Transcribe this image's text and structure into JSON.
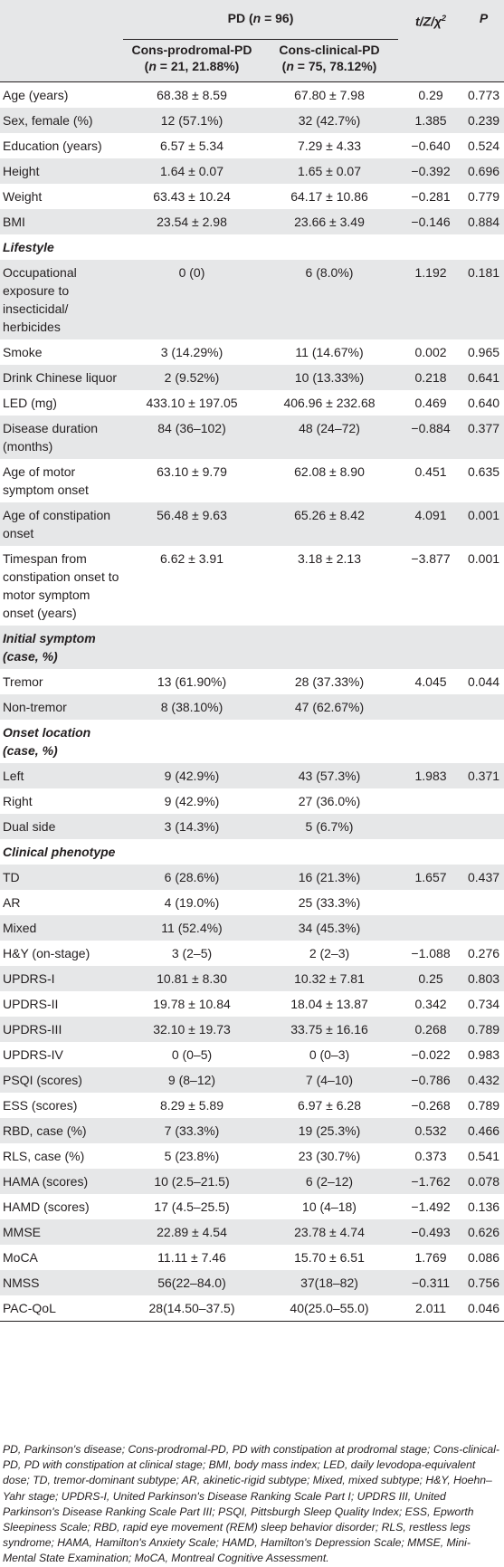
{
  "header": {
    "pd_group": "PD (n = 96)",
    "stat_col": "t/Z/χ²",
    "p_col": "P",
    "group1": "Cons-prodromal-PD",
    "group1_n": "(n = 21, 21.88%)",
    "group2": "Cons-clinical-PD",
    "group2_n": "(n = 75, 78.12%)"
  },
  "rows": [
    {
      "label": "Age (years)",
      "g1": "68.38 ± 8.59",
      "g2": "67.80 ± 7.98",
      "stat": "0.29",
      "p": "0.773"
    },
    {
      "label": "Sex, female (%)",
      "g1": "12 (57.1%)",
      "g2": "32 (42.7%)",
      "stat": "1.385",
      "p": "0.239"
    },
    {
      "label": "Education (years)",
      "g1": "6.57 ± 5.34",
      "g2": "7.29 ± 4.33",
      "stat": "−0.640",
      "p": "0.524"
    },
    {
      "label": "Height",
      "g1": "1.64 ± 0.07",
      "g2": "1.65 ± 0.07",
      "stat": "−0.392",
      "p": "0.696"
    },
    {
      "label": "Weight",
      "g1": "63.43 ± 10.24",
      "g2": "64.17 ± 10.86",
      "stat": "−0.281",
      "p": "0.779"
    },
    {
      "label": "BMI",
      "g1": "23.54 ± 2.98",
      "g2": "23.66 ± 3.49",
      "stat": "−0.146",
      "p": "0.884"
    },
    {
      "label": "Lifestyle",
      "section": true
    },
    {
      "label": "Occupational exposure to insecticidal/ herbicides",
      "g1": "0 (0)",
      "g2": "6 (8.0%)",
      "stat": "1.192",
      "p": "0.181"
    },
    {
      "label": "Smoke",
      "g1": "3 (14.29%)",
      "g2": "11 (14.67%)",
      "stat": "0.002",
      "p": "0.965"
    },
    {
      "label": "Drink Chinese liquor",
      "g1": "2 (9.52%)",
      "g2": "10 (13.33%)",
      "stat": "0.218",
      "p": "0.641"
    },
    {
      "label": "LED (mg)",
      "g1": "433.10 ± 197.05",
      "g2": "406.96 ± 232.68",
      "stat": "0.469",
      "p": "0.640"
    },
    {
      "label": "Disease duration (months)",
      "g1": "84 (36–102)",
      "g2": "48 (24–72)",
      "stat": "−0.884",
      "p": "0.377"
    },
    {
      "label": "Age of motor symptom onset",
      "g1": "63.10 ± 9.79",
      "g2": "62.08 ± 8.90",
      "stat": "0.451",
      "p": "0.635"
    },
    {
      "label": "Age of constipation onset",
      "g1": "56.48 ± 9.63",
      "g2": "65.26 ± 8.42",
      "stat": "4.091",
      "p": "0.001"
    },
    {
      "label": "Timespan from constipation onset to motor symptom onset (years)",
      "g1": "6.62 ± 3.91",
      "g2": "3.18 ± 2.13",
      "stat": "−3.877",
      "p": "0.001"
    },
    {
      "label": "Initial symptom (case, %)",
      "section": true
    },
    {
      "label": "Tremor",
      "g1": "13 (61.90%)",
      "g2": "28 (37.33%)",
      "stat": "4.045",
      "p": "0.044"
    },
    {
      "label": "Non-tremor",
      "g1": "8 (38.10%)",
      "g2": "47 (62.67%)",
      "stat": "",
      "p": ""
    },
    {
      "label": "Onset location (case, %)",
      "section": true
    },
    {
      "label": "Left",
      "g1": "9 (42.9%)",
      "g2": "43 (57.3%)",
      "stat": "1.983",
      "p": "0.371"
    },
    {
      "label": "Right",
      "g1": "9 (42.9%)",
      "g2": "27 (36.0%)",
      "stat": "",
      "p": ""
    },
    {
      "label": "Dual side",
      "g1": "3 (14.3%)",
      "g2": "5 (6.7%)",
      "stat": "",
      "p": ""
    },
    {
      "label": "Clinical phenotype",
      "section": true
    },
    {
      "label": "TD",
      "g1": "6 (28.6%)",
      "g2": "16 (21.3%)",
      "stat": "1.657",
      "p": "0.437"
    },
    {
      "label": "AR",
      "g1": "4 (19.0%)",
      "g2": "25 (33.3%)",
      "stat": "",
      "p": ""
    },
    {
      "label": "Mixed",
      "g1": "11 (52.4%)",
      "g2": "34 (45.3%)",
      "stat": "",
      "p": ""
    },
    {
      "label": "H&Y (on-stage)",
      "g1": "3 (2–5)",
      "g2": "2 (2–3)",
      "stat": "−1.088",
      "p": "0.276"
    },
    {
      "label": "UPDRS-I",
      "g1": "10.81 ± 8.30",
      "g2": "10.32 ± 7.81",
      "stat": "0.25",
      "p": "0.803"
    },
    {
      "label": "UPDRS-II",
      "g1": "19.78 ± 10.84",
      "g2": "18.04 ± 13.87",
      "stat": "0.342",
      "p": "0.734"
    },
    {
      "label": "UPDRS-III",
      "g1": "32.10 ± 19.73",
      "g2": "33.75 ± 16.16",
      "stat": "0.268",
      "p": "0.789"
    },
    {
      "label": "UPDRS-IV",
      "g1": "0 (0–5)",
      "g2": "0 (0–3)",
      "stat": "−0.022",
      "p": "0.983"
    },
    {
      "label": "PSQI (scores)",
      "g1": "9 (8–12)",
      "g2": "7 (4–10)",
      "stat": "−0.786",
      "p": "0.432"
    },
    {
      "label": "ESS (scores)",
      "g1": "8.29 ± 5.89",
      "g2": "6.97 ± 6.28",
      "stat": "−0.268",
      "p": "0.789"
    },
    {
      "label": "RBD, case (%)",
      "g1": "7 (33.3%)",
      "g2": "19 (25.3%)",
      "stat": "0.532",
      "p": "0.466"
    },
    {
      "label": "RLS, case (%)",
      "g1": "5 (23.8%)",
      "g2": "23 (30.7%)",
      "stat": "0.373",
      "p": "0.541"
    },
    {
      "label": "HAMA (scores)",
      "g1": "10 (2.5–21.5)",
      "g2": "6 (2–12)",
      "stat": "−1.762",
      "p": "0.078"
    },
    {
      "label": "HAMD (scores)",
      "g1": "17 (4.5–25.5)",
      "g2": "10 (4–18)",
      "stat": "−1.492",
      "p": "0.136"
    },
    {
      "label": "MMSE",
      "g1": "22.89 ± 4.54",
      "g2": "23.78 ± 4.74",
      "stat": "−0.493",
      "p": "0.626"
    },
    {
      "label": "MoCA",
      "g1": "11.11 ± 7.46",
      "g2": "15.70 ± 6.51",
      "stat": "1.769",
      "p": "0.086"
    },
    {
      "label": "NMSS",
      "g1": "56(22–84.0)",
      "g2": "37(18–82)",
      "stat": "−0.311",
      "p": "0.756"
    },
    {
      "label": "PAC-QoL",
      "g1": "28(14.50–37.5)",
      "g2": "40(25.0–55.0)",
      "stat": "2.011",
      "p": "0.046"
    }
  ],
  "footnote": "PD, Parkinson's disease; Cons-prodromal-PD, PD with constipation at prodromal stage; Cons-clinical-PD, PD with constipation at clinical stage; BMI, body mass index; LED, daily levodopa-equivalent dose; TD, tremor-dominant subtype; AR, akinetic-rigid subtype; Mixed, mixed subtype; H&Y, Hoehn–Yahr stage; UPDRS-I, United Parkinson's Disease Ranking Scale Part I; UPDRS III, United Parkinson's Disease Ranking Scale Part III; PSQI, Pittsburgh Sleep Quality Index; ESS, Epworth Sleepiness Scale; RBD, rapid eye movement (REM) sleep behavior disorder; RLS, restless legs syndrome; HAMA, Hamilton's Anxiety Scale; HAMD, Hamilton's Depression Scale; MMSE, Mini-Mental State Examination; MoCA, Montreal Cognitive Assessment."
}
